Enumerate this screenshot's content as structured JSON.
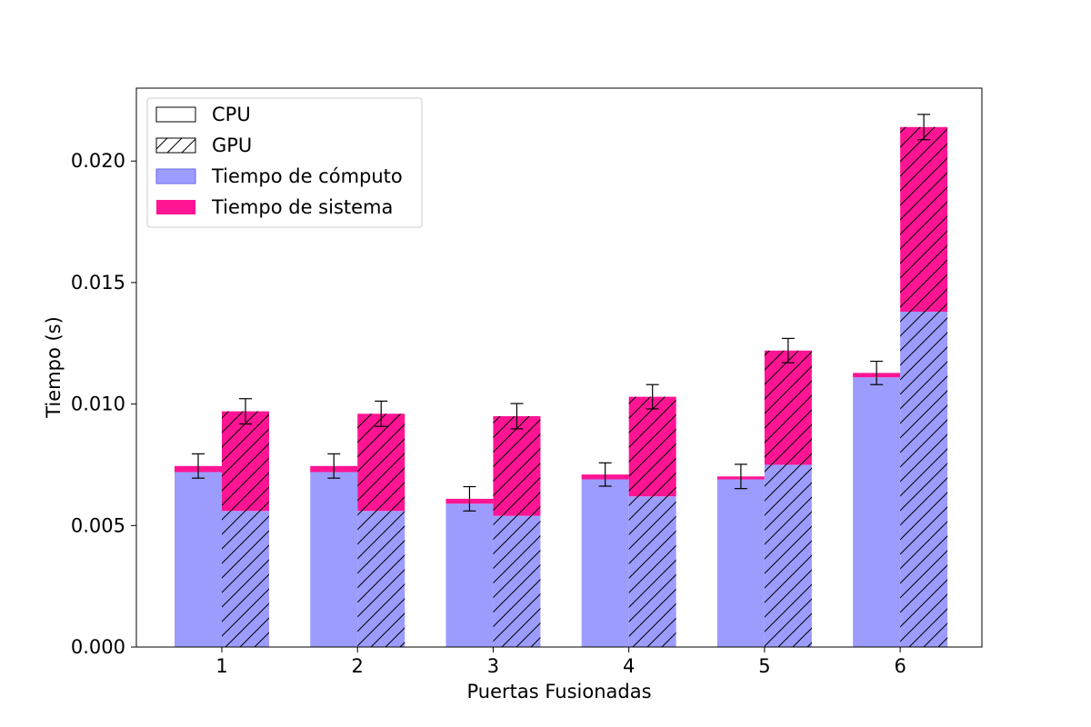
{
  "chart_data": {
    "type": "bar",
    "title": "",
    "xlabel": "Puertas Fusionadas",
    "ylabel": "Tiempo (s)",
    "ylim": [
      0,
      0.023
    ],
    "y_ticks": [
      "0.000",
      "0.005",
      "0.010",
      "0.015",
      "0.020"
    ],
    "categories": [
      "1",
      "2",
      "3",
      "4",
      "5",
      "6"
    ],
    "grid": false,
    "legend_position": "top-left",
    "legend": [
      {
        "label": "CPU",
        "swatch": "outline"
      },
      {
        "label": "GPU",
        "swatch": "hatch"
      },
      {
        "label": "Tiempo de cómputo",
        "swatch": "compute"
      },
      {
        "label": "Tiempo de sistema",
        "swatch": "system"
      }
    ],
    "colors": {
      "compute": "#9c9cff",
      "compute_legend_edge": "#6a6ae6",
      "system": "#ff1493",
      "edge": "#000000"
    },
    "series": [
      {
        "name": "CPU",
        "compute": [
          0.0072,
          0.0072,
          0.0059,
          0.0069,
          0.0069,
          0.0111
        ],
        "system": [
          0.00025,
          0.00025,
          0.0002,
          0.0002,
          0.00012,
          0.00018
        ],
        "error": [
          0.0005,
          0.0005,
          0.0005,
          0.00048,
          0.0005,
          0.00048
        ]
      },
      {
        "name": "GPU",
        "compute": [
          0.0056,
          0.0056,
          0.0054,
          0.0062,
          0.0075,
          0.0138
        ],
        "system": [
          0.0041,
          0.004,
          0.0041,
          0.0041,
          0.0047,
          0.0076
        ],
        "error": [
          0.00052,
          0.00052,
          0.00052,
          0.0005,
          0.0005,
          0.00052
        ]
      }
    ]
  }
}
